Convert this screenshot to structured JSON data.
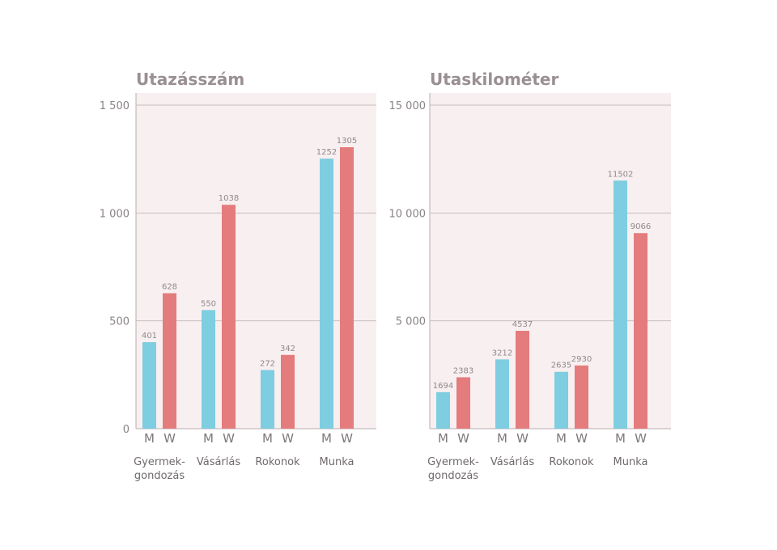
{
  "colors": {
    "men": "#7ecde0",
    "women": "#e47b7c",
    "plot_bg": "#f8eff0",
    "grid": "#c9bec1",
    "axis": "#b9aeb1"
  },
  "chart_data": [
    {
      "type": "bar",
      "title": "Utazásszám",
      "categories": [
        "Gyermek-\ngondozás",
        "Vásárlás",
        "Rokonok",
        "Munka"
      ],
      "gender_labels": [
        "M",
        "W"
      ],
      "series": [
        {
          "key": "M",
          "values": [
            401,
            550,
            272,
            1252
          ]
        },
        {
          "key": "W",
          "values": [
            628,
            1038,
            342,
            1305
          ]
        }
      ],
      "ylim": [
        0,
        1500
      ],
      "yticks": [
        0,
        500,
        1000,
        1500
      ],
      "ytick_labels": [
        "0",
        "500",
        "1 000",
        "1 500"
      ],
      "grid": true
    },
    {
      "type": "bar",
      "title": "Utaskilométer",
      "categories": [
        "Gyermek-\ngondozás",
        "Vásárlás",
        "Rokonok",
        "Munka"
      ],
      "gender_labels": [
        "M",
        "W"
      ],
      "series": [
        {
          "key": "M",
          "values": [
            1694,
            3212,
            2635,
            11502
          ]
        },
        {
          "key": "W",
          "values": [
            2383,
            4537,
            2930,
            9066
          ]
        }
      ],
      "ylim": [
        0,
        15000
      ],
      "yticks": [
        0,
        5000,
        10000,
        15000
      ],
      "ytick_labels": [
        "",
        "5 000",
        "10 000",
        "15 000"
      ],
      "grid": true
    }
  ]
}
